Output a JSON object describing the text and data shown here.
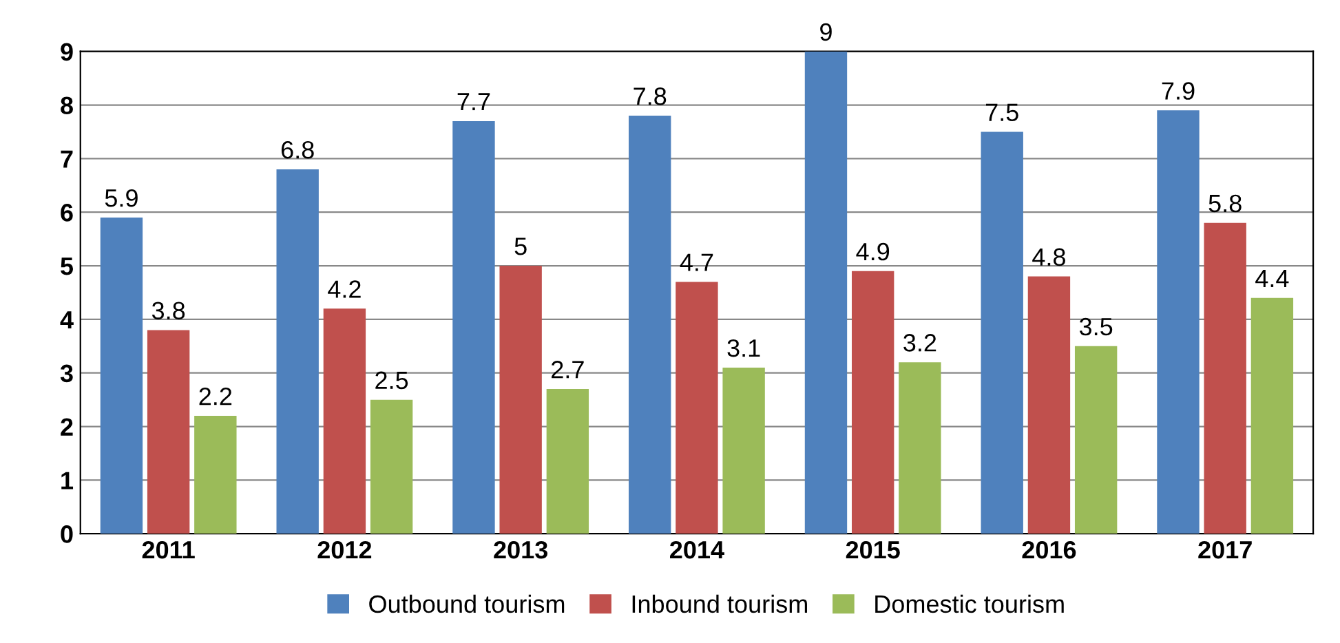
{
  "chart_data": {
    "type": "bar",
    "categories": [
      "2011",
      "2012",
      "2013",
      "2014",
      "2015",
      "2016",
      "2017"
    ],
    "series": [
      {
        "name": "Outbound tourism",
        "color": "#4f81bd",
        "values": [
          5.9,
          6.8,
          7.7,
          7.8,
          9,
          7.5,
          7.9
        ]
      },
      {
        "name": "Inbound tourism",
        "color": "#c0504d",
        "values": [
          3.8,
          4.2,
          5,
          4.7,
          4.9,
          4.8,
          5.8
        ]
      },
      {
        "name": "Domestic tourism",
        "color": "#9bbb59",
        "values": [
          2.2,
          2.5,
          2.7,
          3.1,
          3.2,
          3.5,
          4.4
        ]
      }
    ],
    "ylim": [
      0,
      9
    ],
    "yticks": [
      0,
      1,
      2,
      3,
      4,
      5,
      6,
      7,
      8,
      9
    ],
    "grid": "y",
    "legend": "bottom",
    "data_labels": true
  }
}
